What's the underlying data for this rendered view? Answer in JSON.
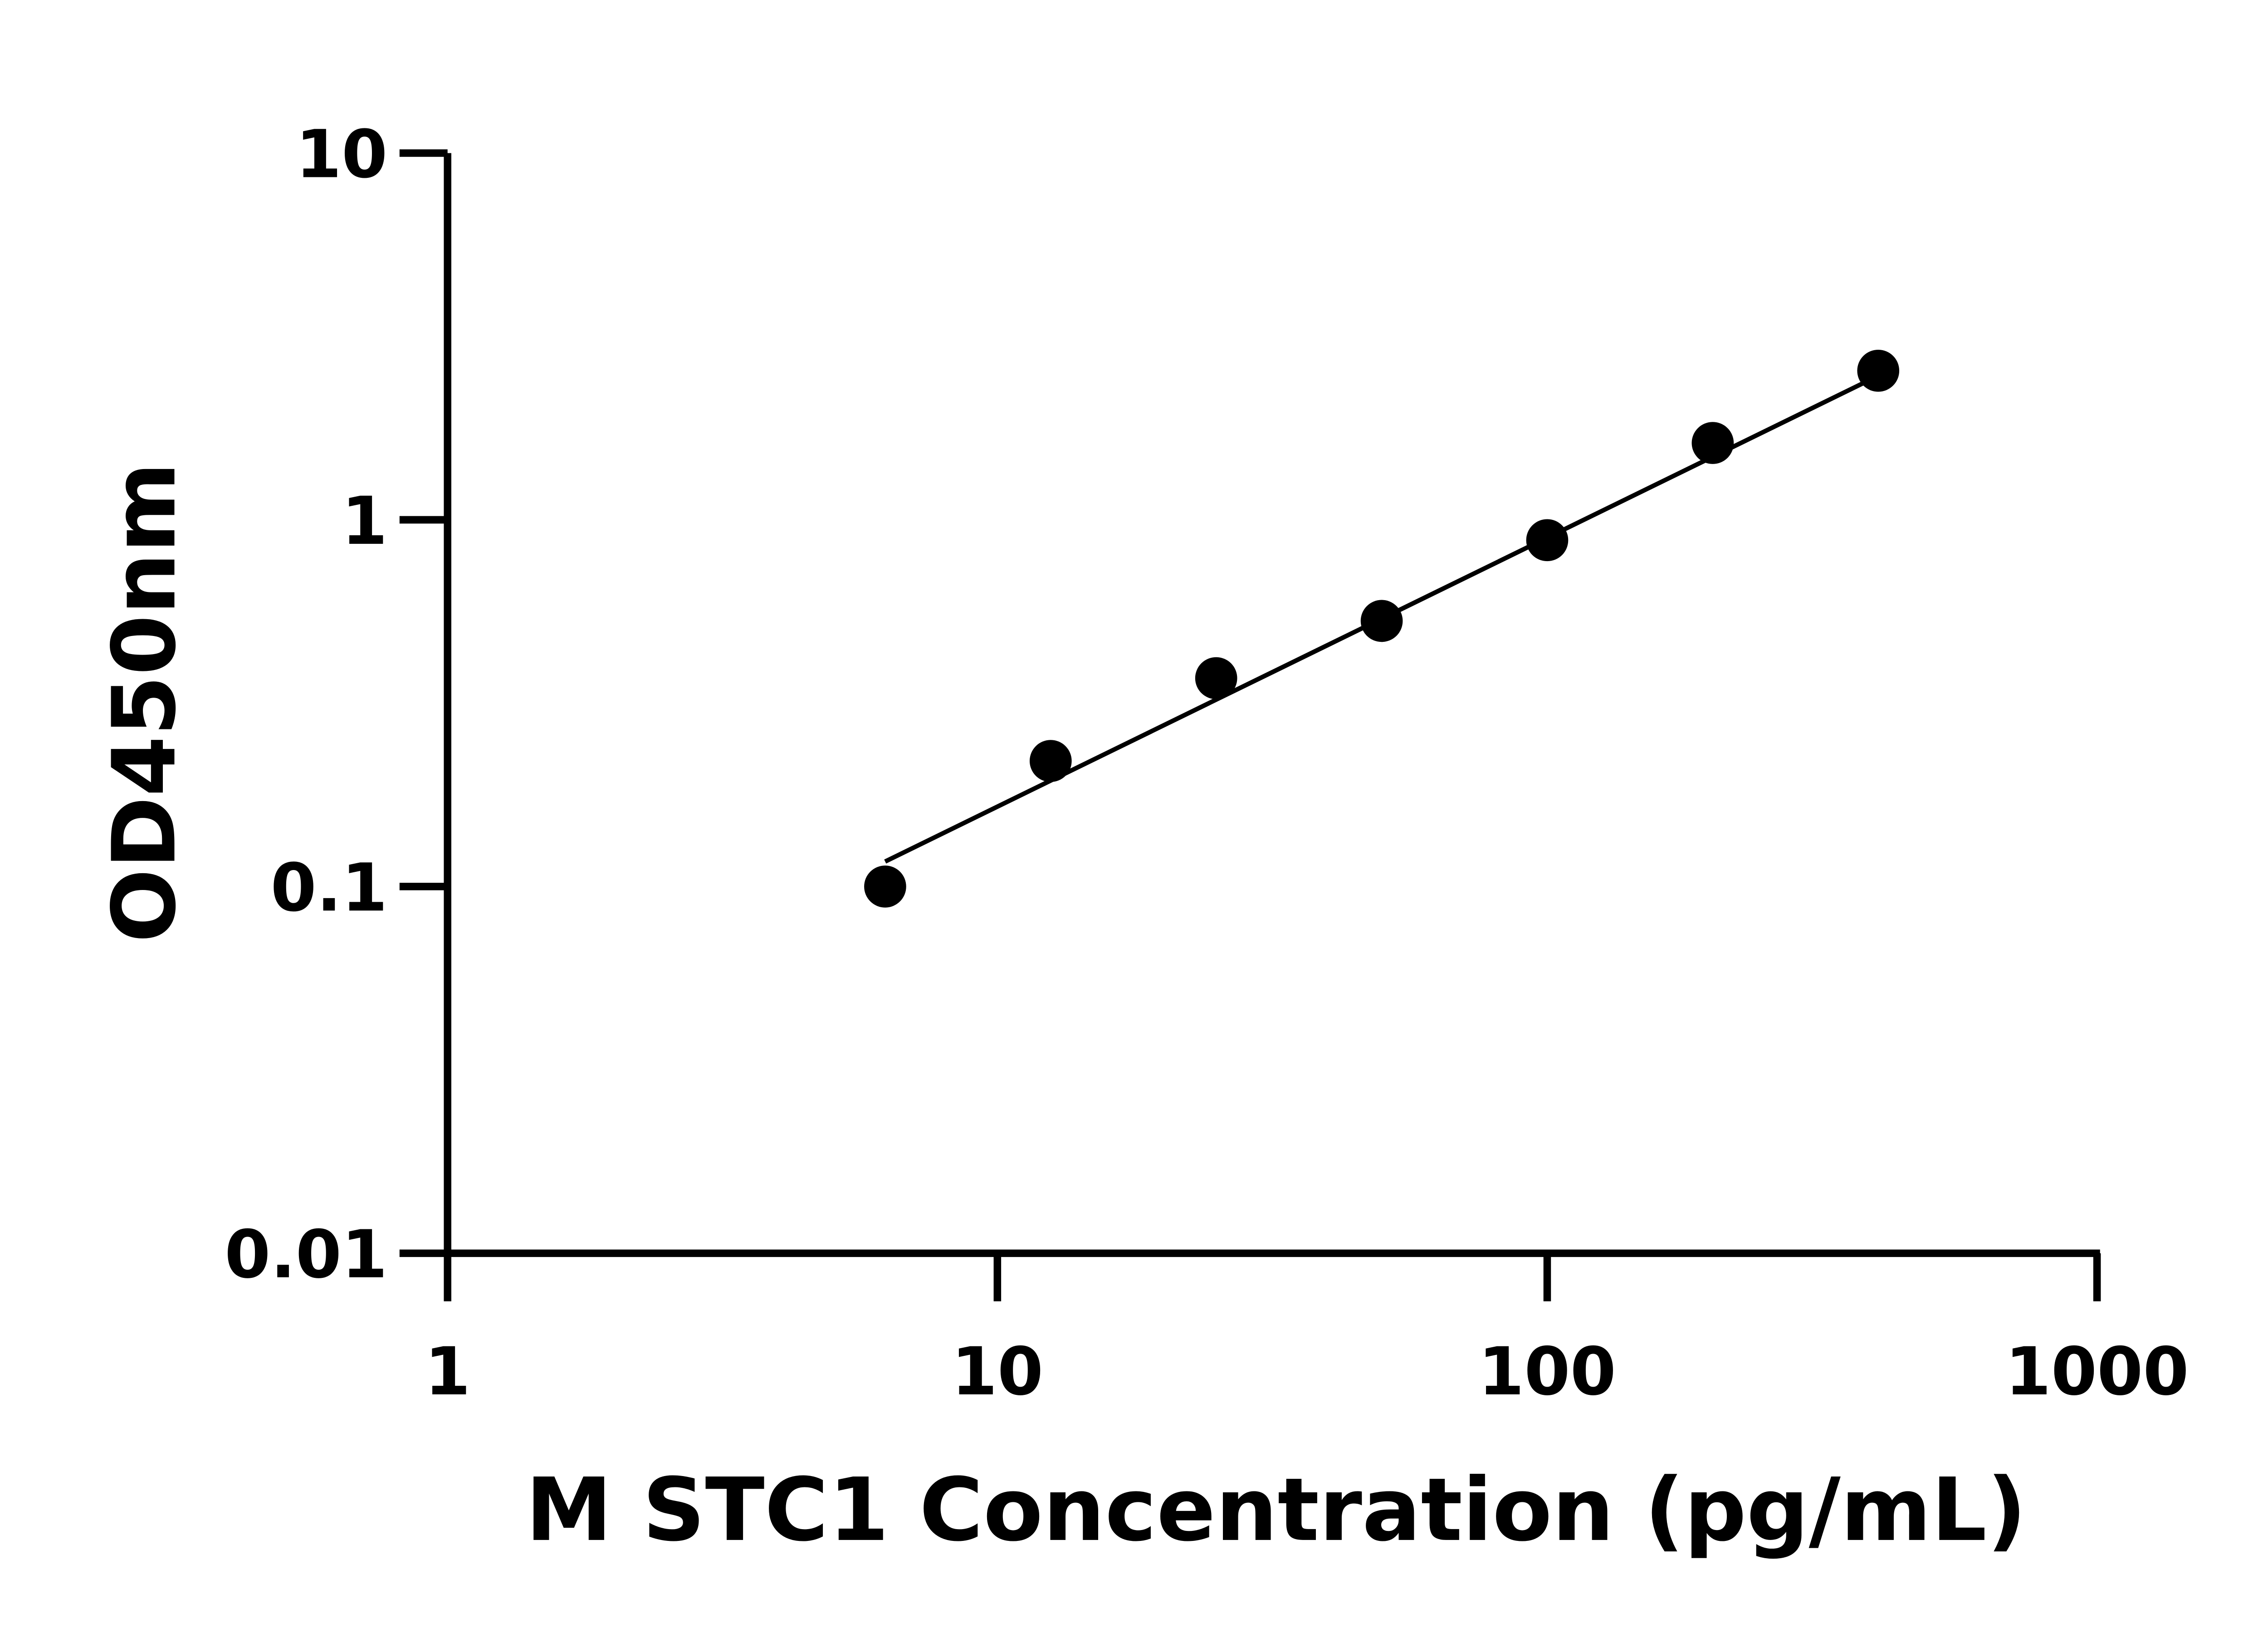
{
  "chart_data": {
    "type": "scatter",
    "title": "",
    "xlabel": "M STC1 Concentration (pg/mL)",
    "ylabel": "OD450nm",
    "xscale": "log",
    "yscale": "log",
    "xlim": [
      1,
      1000
    ],
    "ylim": [
      0.01,
      10
    ],
    "xticks": [
      1,
      10,
      100,
      1000
    ],
    "xtick_labels": [
      "1",
      "10",
      "100",
      "1000"
    ],
    "yticks": [
      0.01,
      0.1,
      1,
      10
    ],
    "ytick_labels": [
      "0.01",
      "0.1",
      "1",
      "10"
    ],
    "grid": false,
    "legend": "none",
    "series": [
      {
        "x": [
          6.25,
          12.5,
          25,
          50,
          100,
          200,
          400
        ],
        "y": [
          0.1,
          0.22,
          0.37,
          0.53,
          0.88,
          1.62,
          2.55
        ],
        "marker": "circle",
        "color": "#000000"
      }
    ],
    "fit_line": {
      "x": [
        6.25,
        400
      ],
      "y": [
        0.117,
        2.47
      ],
      "color": "#000000"
    }
  }
}
